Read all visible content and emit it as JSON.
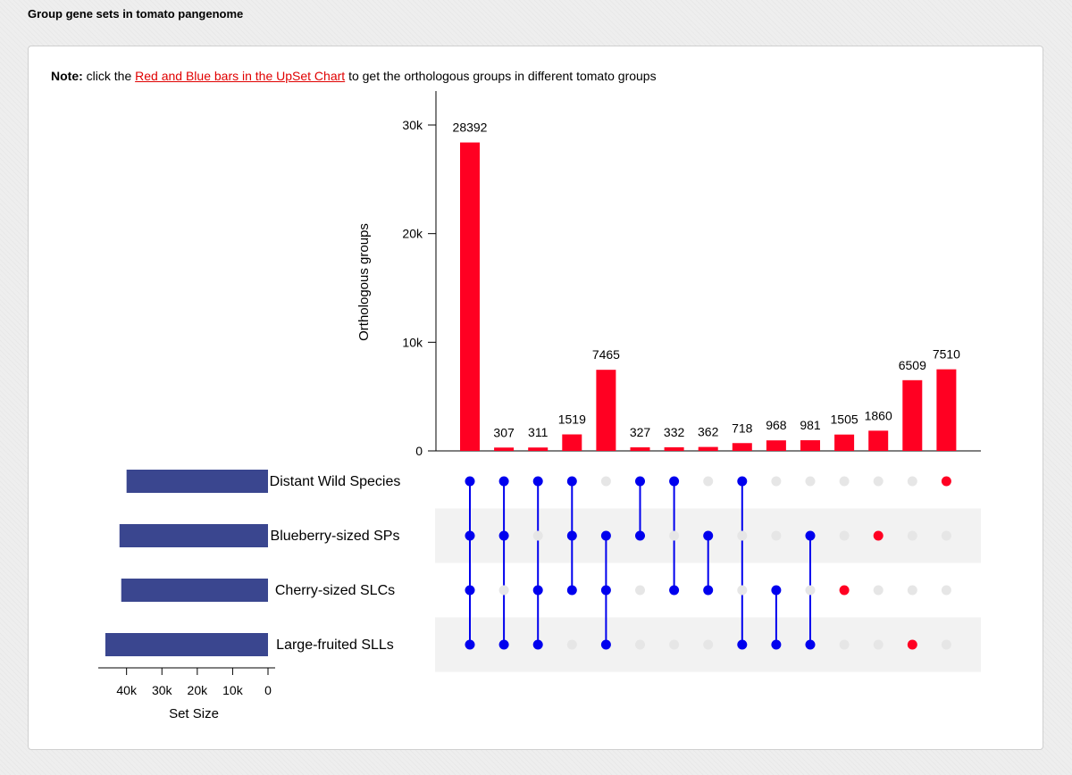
{
  "page": {
    "heading": "Group gene sets in tomato pangenome"
  },
  "note": {
    "label": "Note:",
    "text_before": "click the",
    "link_text": "Red and Blue bars in the UpSet Chart",
    "text_after": "to get the orthologous groups in different tomato groups"
  },
  "colors": {
    "bar": "#ff0022",
    "active_dot": "#0000ee",
    "single_dot": "#ff0022",
    "inactive_dot": "#e6e6e6",
    "set_bar": "#3a468f",
    "stripe": "#f2f2f2"
  },
  "chart_data": {
    "type": "bar",
    "ylabel": "Orthologous groups",
    "ylim": [
      0,
      32000
    ],
    "yticks": [
      0,
      10000,
      20000,
      30000
    ],
    "ytick_labels": [
      "0",
      "10k",
      "20k",
      "30k"
    ],
    "sets": [
      {
        "name": "Distant Wild Species",
        "size": 40000
      },
      {
        "name": "Blueberry-sized SPs",
        "size": 42000
      },
      {
        "name": "Cherry-sized SLCs",
        "size": 41500
      },
      {
        "name": "Large-fruited SLLs",
        "size": 46000
      }
    ],
    "set_size_axis": {
      "label": "Set Size",
      "ticks": [
        40000,
        30000,
        20000,
        10000,
        0
      ],
      "tick_labels": [
        "40k",
        "30k",
        "20k",
        "10k",
        "0"
      ],
      "max": 48000
    },
    "intersections": [
      {
        "value": 28392,
        "label": "28392",
        "sets": [
          0,
          1,
          2,
          3
        ]
      },
      {
        "value": 307,
        "label": "307",
        "sets": [
          0,
          1,
          3
        ]
      },
      {
        "value": 311,
        "label": "311",
        "sets": [
          0,
          2,
          3
        ]
      },
      {
        "value": 1519,
        "label": "1519",
        "sets": [
          0,
          1,
          2
        ]
      },
      {
        "value": 7465,
        "label": "7465",
        "sets": [
          1,
          2,
          3
        ]
      },
      {
        "value": 327,
        "label": "327",
        "sets": [
          0,
          1
        ]
      },
      {
        "value": 332,
        "label": "332",
        "sets": [
          0,
          2
        ]
      },
      {
        "value": 362,
        "label": "362",
        "sets": [
          1,
          2
        ]
      },
      {
        "value": 718,
        "label": "718",
        "sets": [
          0,
          3
        ]
      },
      {
        "value": 968,
        "label": "968",
        "sets": [
          2,
          3
        ]
      },
      {
        "value": 981,
        "label": "981",
        "sets": [
          1,
          3
        ]
      },
      {
        "value": 1505,
        "label": "1505",
        "sets": [
          2
        ]
      },
      {
        "value": 1860,
        "label": "1860",
        "sets": [
          1
        ]
      },
      {
        "value": 6509,
        "label": "6509",
        "sets": [
          3
        ]
      },
      {
        "value": 7510,
        "label": "7510",
        "sets": [
          0
        ]
      }
    ]
  }
}
